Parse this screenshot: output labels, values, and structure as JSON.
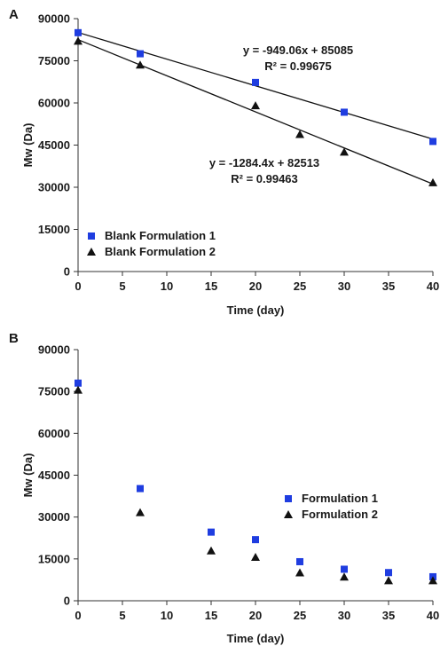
{
  "chart_data": [
    {
      "panel": "A",
      "type": "scatter",
      "xlabel": "Time (day)",
      "ylabel": "Mw (Da)",
      "xlim": [
        0,
        40
      ],
      "ylim": [
        0,
        90000
      ],
      "xticks": [
        0,
        5,
        10,
        15,
        20,
        25,
        30,
        35,
        40
      ],
      "yticks": [
        0,
        15000,
        30000,
        45000,
        60000,
        75000,
        90000
      ],
      "grid": false,
      "legend_position": "bottom-left",
      "series": [
        {
          "name": "Blank Formulation 1",
          "marker": "square",
          "color": "#1f3de0",
          "x": [
            0,
            7,
            20,
            30,
            40
          ],
          "y": [
            85000,
            77500,
            67300,
            56700,
            46300
          ],
          "trendline": {
            "slope": -949.06,
            "intercept": 85085,
            "label": "y = -949.06x + 85085",
            "r2_label": "R² = 0.99675"
          }
        },
        {
          "name": "Blank Formulation 2",
          "marker": "triangle",
          "color": "#111111",
          "x": [
            0,
            7,
            20,
            25,
            30,
            40
          ],
          "y": [
            82000,
            73500,
            59000,
            48800,
            42500,
            31600
          ],
          "trendline": {
            "slope": -1284.4,
            "intercept": 82513,
            "label": "y = -1284.4x + 82513",
            "r2_label": "R² = 0.99463"
          }
        }
      ]
    },
    {
      "panel": "B",
      "type": "scatter",
      "xlabel": "Time (day)",
      "ylabel": "Mw (Da)",
      "xlim": [
        0,
        40
      ],
      "ylim": [
        0,
        90000
      ],
      "xticks": [
        0,
        5,
        10,
        15,
        20,
        25,
        30,
        35,
        40
      ],
      "yticks": [
        0,
        15000,
        30000,
        45000,
        60000,
        75000,
        90000
      ],
      "grid": false,
      "legend_position": "right",
      "series": [
        {
          "name": "Formulation 1",
          "marker": "square",
          "color": "#1f3de0",
          "x": [
            0,
            7,
            15,
            20,
            25,
            30,
            35,
            40
          ],
          "y": [
            78000,
            40200,
            24600,
            21900,
            14000,
            11300,
            10100,
            8600
          ]
        },
        {
          "name": "Formulation 2",
          "marker": "triangle",
          "color": "#111111",
          "x": [
            0,
            7,
            15,
            20,
            25,
            30,
            35,
            40
          ],
          "y": [
            75500,
            31600,
            17900,
            15600,
            10000,
            8500,
            7200,
            7200
          ]
        }
      ]
    }
  ]
}
